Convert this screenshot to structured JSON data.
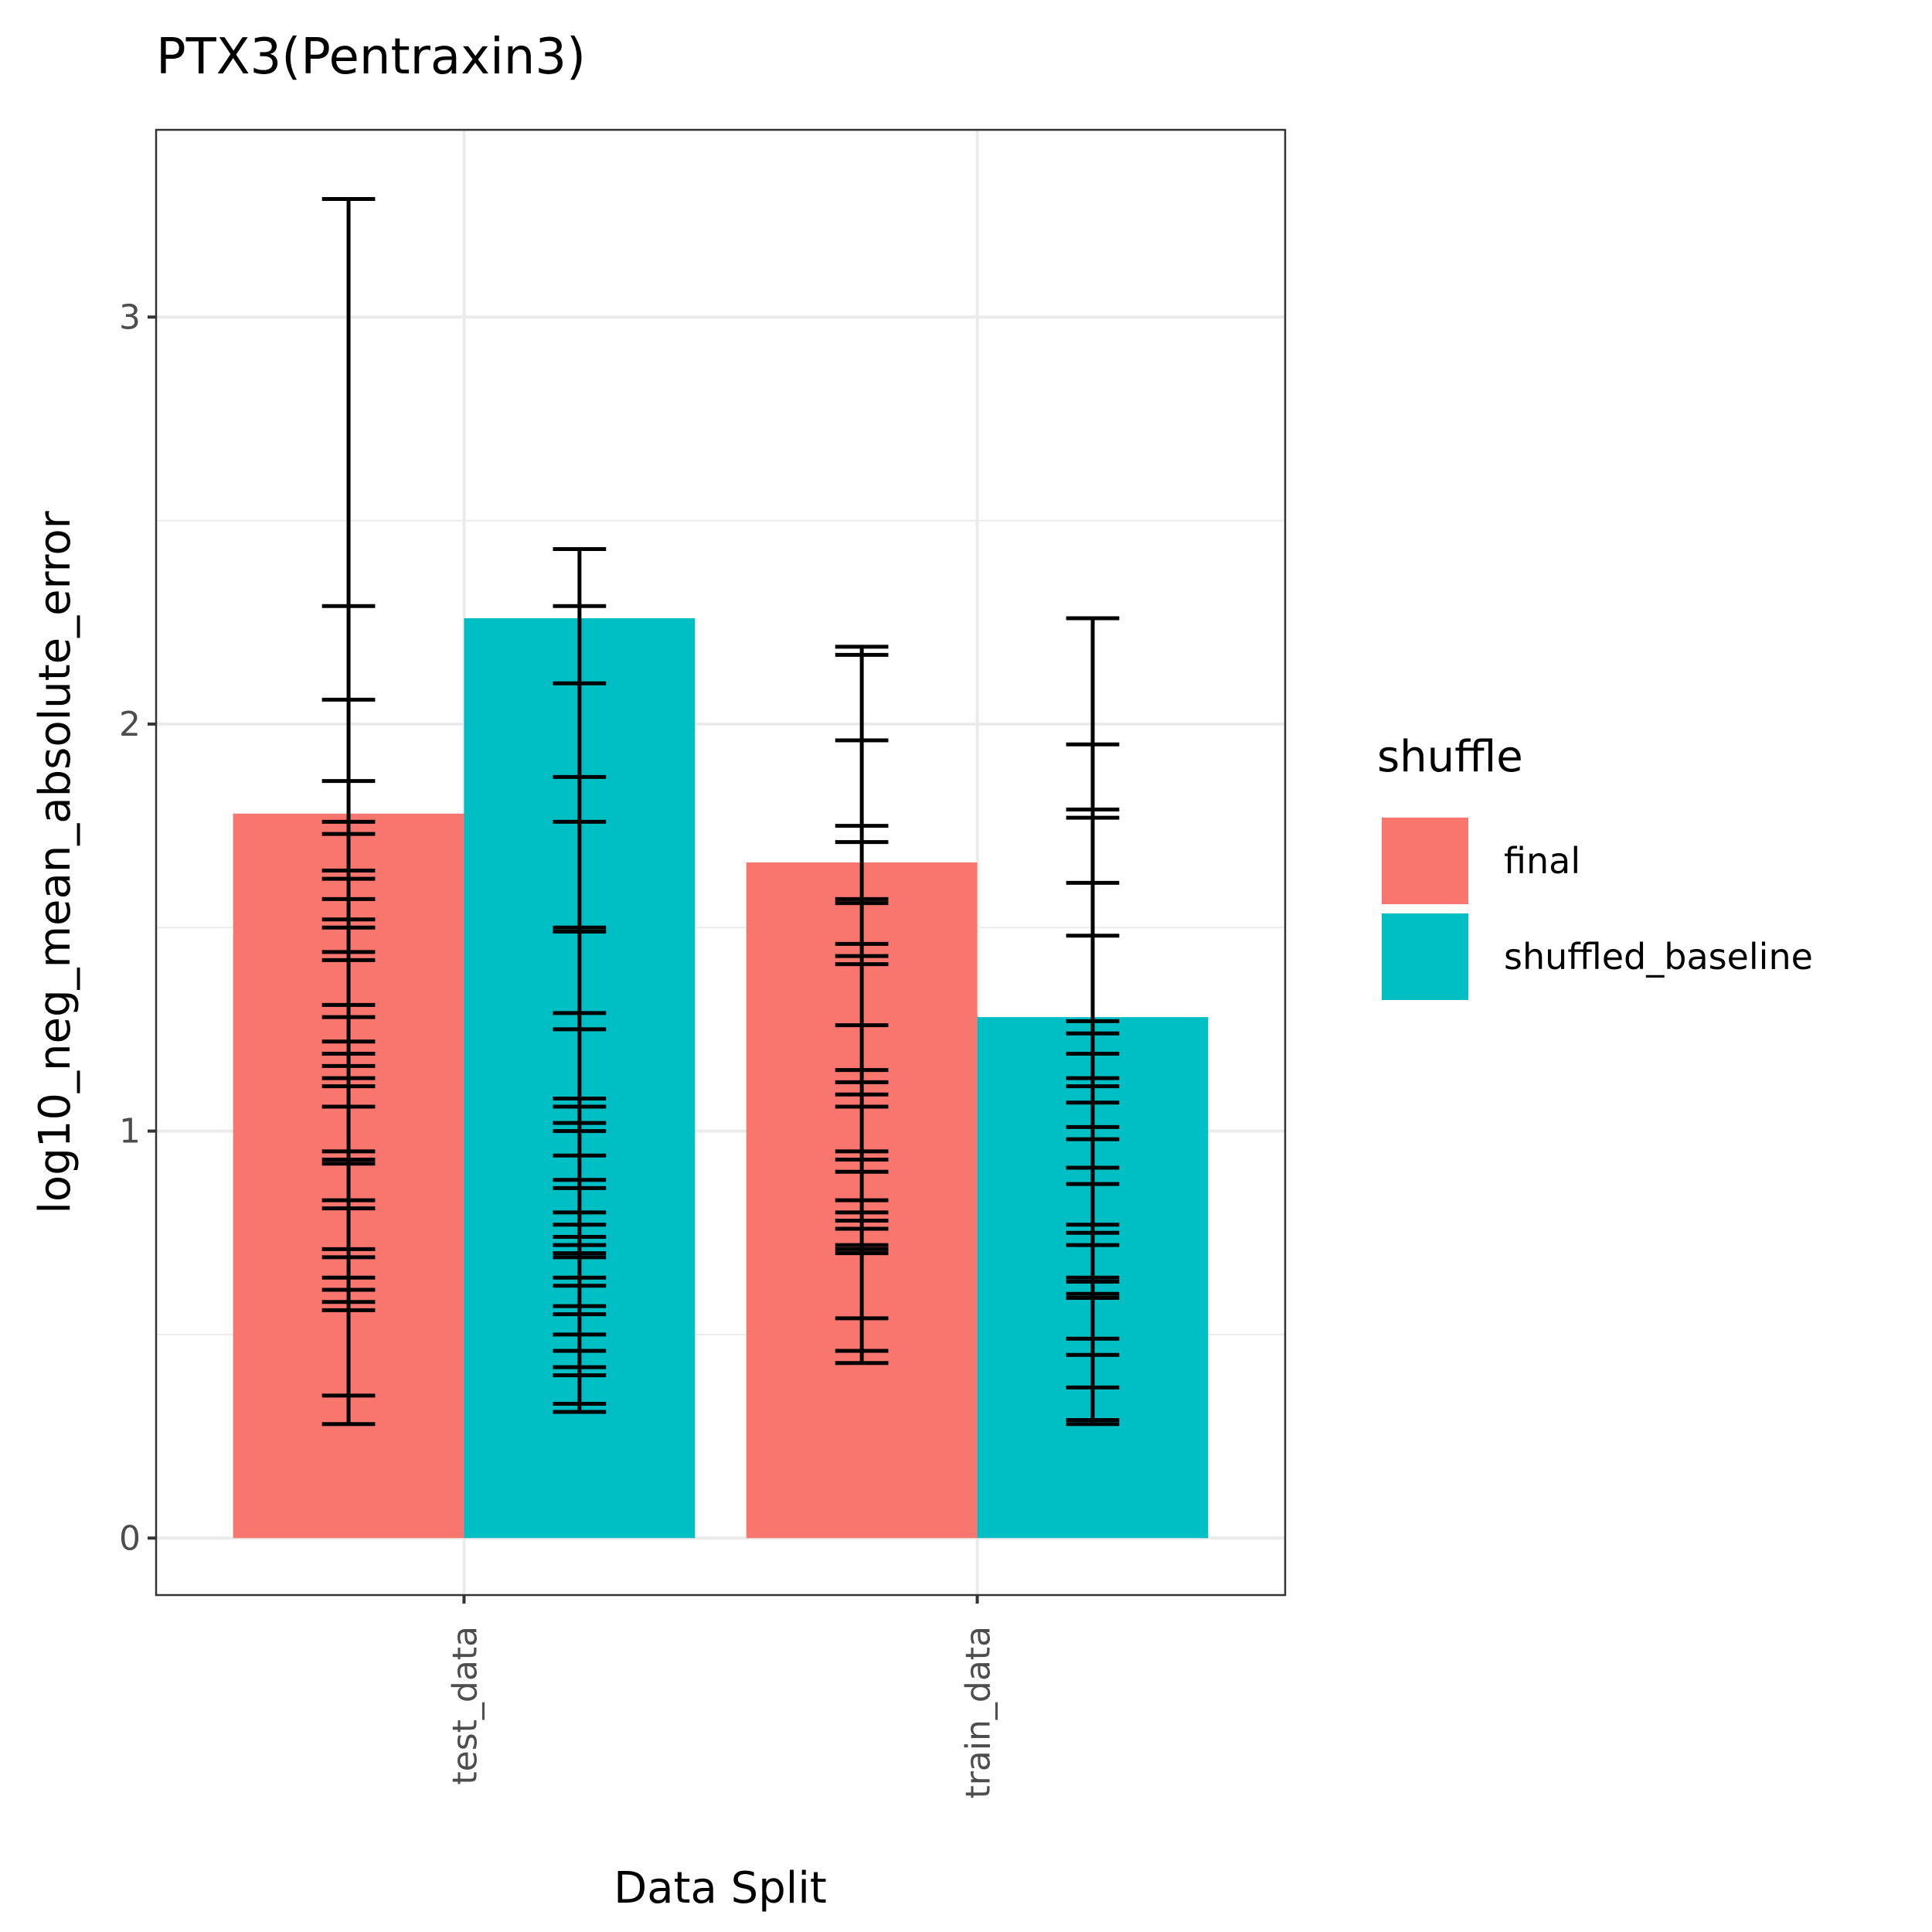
{
  "chart_data": {
    "type": "bar",
    "title": "PTX3(Pentraxin3)",
    "xlabel": "Data Split",
    "ylabel": "log10_neg_mean_absolute_error",
    "categories": [
      "test_data",
      "train_data"
    ],
    "ylim": [
      -0.14,
      3.46
    ],
    "yticks": [
      0,
      1,
      2,
      3
    ],
    "grid": true,
    "legend": {
      "title": "shuffle",
      "placement": "right"
    },
    "series": [
      {
        "name": "final",
        "color": "#F8766D",
        "values": [
          1.78,
          1.66
        ],
        "error_ticks": [
          [
            3.29,
            2.29,
            2.06,
            1.86,
            1.76,
            1.73,
            1.64,
            1.62,
            1.57,
            1.52,
            1.5,
            1.44,
            1.42,
            1.31,
            1.28,
            1.22,
            1.19,
            1.16,
            1.13,
            1.11,
            1.06,
            0.95,
            0.93,
            0.92,
            0.83,
            0.81,
            0.71,
            0.69,
            0.64,
            0.61,
            0.58,
            0.56,
            0.35,
            0.28
          ],
          [
            2.19,
            2.17,
            1.96,
            1.75,
            1.71,
            1.57,
            1.56,
            1.46,
            1.43,
            1.41,
            1.26,
            1.15,
            1.12,
            1.09,
            1.06,
            0.95,
            0.93,
            0.9,
            0.83,
            0.8,
            0.78,
            0.76,
            0.72,
            0.71,
            0.7,
            0.54,
            0.46,
            0.43
          ]
        ]
      },
      {
        "name": "shuffled_baseline",
        "color": "#00BFC4",
        "values": [
          2.26,
          1.28
        ],
        "error_ticks": [
          [
            2.43,
            2.29,
            2.1,
            1.87,
            1.76,
            1.5,
            1.49,
            1.29,
            1.25,
            1.08,
            1.06,
            1.02,
            1.0,
            0.94,
            0.88,
            0.86,
            0.8,
            0.77,
            0.74,
            0.72,
            0.7,
            0.69,
            0.64,
            0.62,
            0.57,
            0.55,
            0.5,
            0.46,
            0.42,
            0.4,
            0.33,
            0.31
          ],
          [
            2.26,
            1.95,
            1.79,
            1.77,
            1.61,
            1.48,
            1.27,
            1.24,
            1.19,
            1.13,
            1.11,
            1.07,
            1.01,
            0.98,
            0.91,
            0.87,
            0.77,
            0.75,
            0.72,
            0.64,
            0.63,
            0.6,
            0.59,
            0.49,
            0.45,
            0.37,
            0.29,
            0.28
          ]
        ]
      }
    ]
  }
}
